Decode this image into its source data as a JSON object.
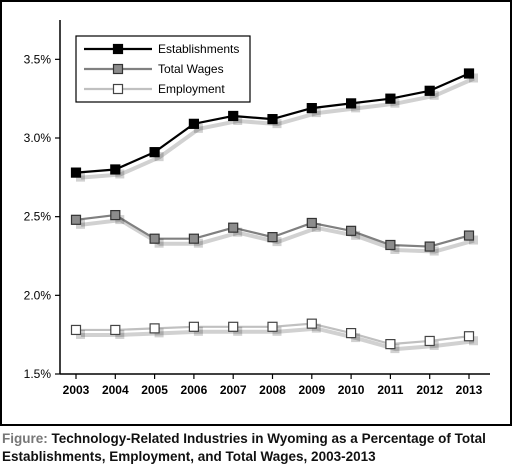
{
  "caption": {
    "lead": "Figure:",
    "text": "Technology-Related Industries in Wyoming as a Percentage of Total Establishments, Employment, and Total Wages, 2003-2013"
  },
  "chart_data": {
    "type": "line",
    "title": "",
    "xlabel": "",
    "ylabel": "",
    "x": [
      "2003",
      "2004",
      "2005",
      "2006",
      "2007",
      "2008",
      "2009",
      "2010",
      "2011",
      "2012",
      "2013"
    ],
    "ylim": [
      1.5,
      3.75
    ],
    "yticks": [
      1.5,
      2.0,
      2.5,
      3.0,
      3.5
    ],
    "ytick_labels": [
      "1.5%",
      "2.0%",
      "2.5%",
      "3.0%",
      "3.5%"
    ],
    "grid": false,
    "legend_position": "top-left",
    "series": [
      {
        "name": "Establishments",
        "line_color": "#000000",
        "marker_fill": "#000000",
        "marker_stroke": "#000000",
        "values": [
          2.78,
          2.8,
          2.91,
          3.09,
          3.14,
          3.12,
          3.19,
          3.22,
          3.25,
          3.3,
          3.41
        ]
      },
      {
        "name": "Total Wages",
        "line_color": "#808080",
        "marker_fill": "#8c8c8c",
        "marker_stroke": "#333333",
        "values": [
          2.48,
          2.51,
          2.36,
          2.36,
          2.43,
          2.37,
          2.46,
          2.41,
          2.32,
          2.31,
          2.38
        ]
      },
      {
        "name": "Employment",
        "line_color": "#c0c0c0",
        "marker_fill": "#ffffff",
        "marker_stroke": "#444444",
        "values": [
          1.78,
          1.78,
          1.79,
          1.8,
          1.8,
          1.8,
          1.82,
          1.76,
          1.69,
          1.71,
          1.74
        ]
      }
    ]
  }
}
